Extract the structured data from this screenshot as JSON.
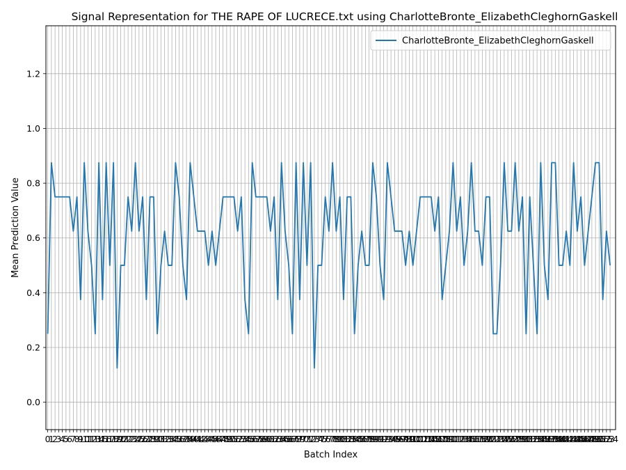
{
  "chart_data": {
    "type": "line",
    "title": "Signal Representation for THE RAPE OF LUCRECE.txt using CharlotteBronte_ElizabethCleghornGaskell",
    "xlabel": "Batch Index",
    "ylabel": "Mean Prediction Value",
    "ylim": [
      -0.1,
      1.375
    ],
    "yticks": [
      0.0,
      0.2,
      0.4,
      0.6,
      0.8,
      1.0,
      1.2
    ],
    "grid": true,
    "legend_position": "upper-right",
    "color": "#1f77b4",
    "series": [
      {
        "name": "CharlotteBronte_ElizabethCleghornGaskell",
        "values": [
          0.25,
          0.875,
          0.75,
          0.75,
          0.75,
          0.75,
          0.75,
          0.625,
          0.75,
          0.375,
          0.875,
          0.625,
          0.5,
          0.25,
          0.875,
          0.375,
          0.875,
          0.5,
          0.875,
          0.125,
          0.5,
          0.5,
          0.75,
          0.625,
          0.875,
          0.625,
          0.75,
          0.375,
          0.75,
          0.75,
          0.25,
          0.5,
          0.625,
          0.5,
          0.5,
          0.875,
          0.75,
          0.5,
          0.375,
          0.875,
          0.75,
          0.625,
          0.625,
          0.625,
          0.5,
          0.625,
          0.5,
          0.625,
          0.75,
          0.75,
          0.75,
          0.75,
          0.625,
          0.75,
          0.375,
          0.25,
          0.875,
          0.75,
          0.75,
          0.75,
          0.75,
          0.625,
          0.75,
          0.375,
          0.875,
          0.625,
          0.5,
          0.25,
          0.875,
          0.375,
          0.875,
          0.5,
          0.875,
          0.125,
          0.5,
          0.5,
          0.75,
          0.625,
          0.875,
          0.625,
          0.75,
          0.375,
          0.75,
          0.75,
          0.25,
          0.5,
          0.625,
          0.5,
          0.5,
          0.875,
          0.75,
          0.5,
          0.375,
          0.875,
          0.75,
          0.625,
          0.625,
          0.625,
          0.5,
          0.625,
          0.5,
          0.625,
          0.75,
          0.75,
          0.75,
          0.75,
          0.625,
          0.75,
          0.375,
          0.5,
          0.625,
          0.875,
          0.625,
          0.75,
          0.5,
          0.625,
          0.875,
          0.625,
          0.625,
          0.5,
          0.75,
          0.75,
          0.25,
          0.25,
          0.5,
          0.875,
          0.625,
          0.625,
          0.875,
          0.625,
          0.75,
          0.25,
          0.75,
          0.5,
          0.25,
          0.875,
          0.5,
          0.375,
          0.875,
          0.875,
          0.5,
          0.5,
          0.625,
          0.5,
          0.875,
          0.625,
          0.75,
          0.5,
          0.625,
          0.75,
          0.875,
          0.875,
          0.375,
          0.625,
          0.5
        ]
      }
    ]
  }
}
